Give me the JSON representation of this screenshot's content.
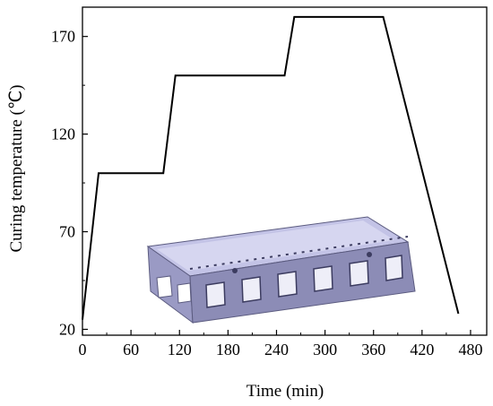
{
  "chart_data": {
    "type": "line",
    "title": "",
    "xlabel": "Time (min)",
    "ylabel": "Curing temperature (℃)",
    "xlim": [
      0,
      500
    ],
    "ylim": [
      17,
      185
    ],
    "xticks": [
      0,
      60,
      120,
      180,
      240,
      300,
      360,
      420,
      480
    ],
    "yticks": [
      20,
      70,
      120,
      170
    ],
    "grid": false,
    "legend": "none",
    "series": [
      {
        "x": [
          0,
          20,
          100,
          115,
          175,
          190,
          250,
          262,
          280,
          341,
          372,
          465
        ],
        "y": [
          25,
          100,
          100,
          150,
          150,
          150,
          150,
          180,
          180,
          180,
          180,
          28
        ]
      }
    ],
    "inset_image": "curing-mold-3d-render",
    "colors": {
      "line": "#000000",
      "mold_top": "#b8b8e0",
      "mold_side": "#8e8eb8",
      "mold_dark": "#5c5c80"
    }
  }
}
